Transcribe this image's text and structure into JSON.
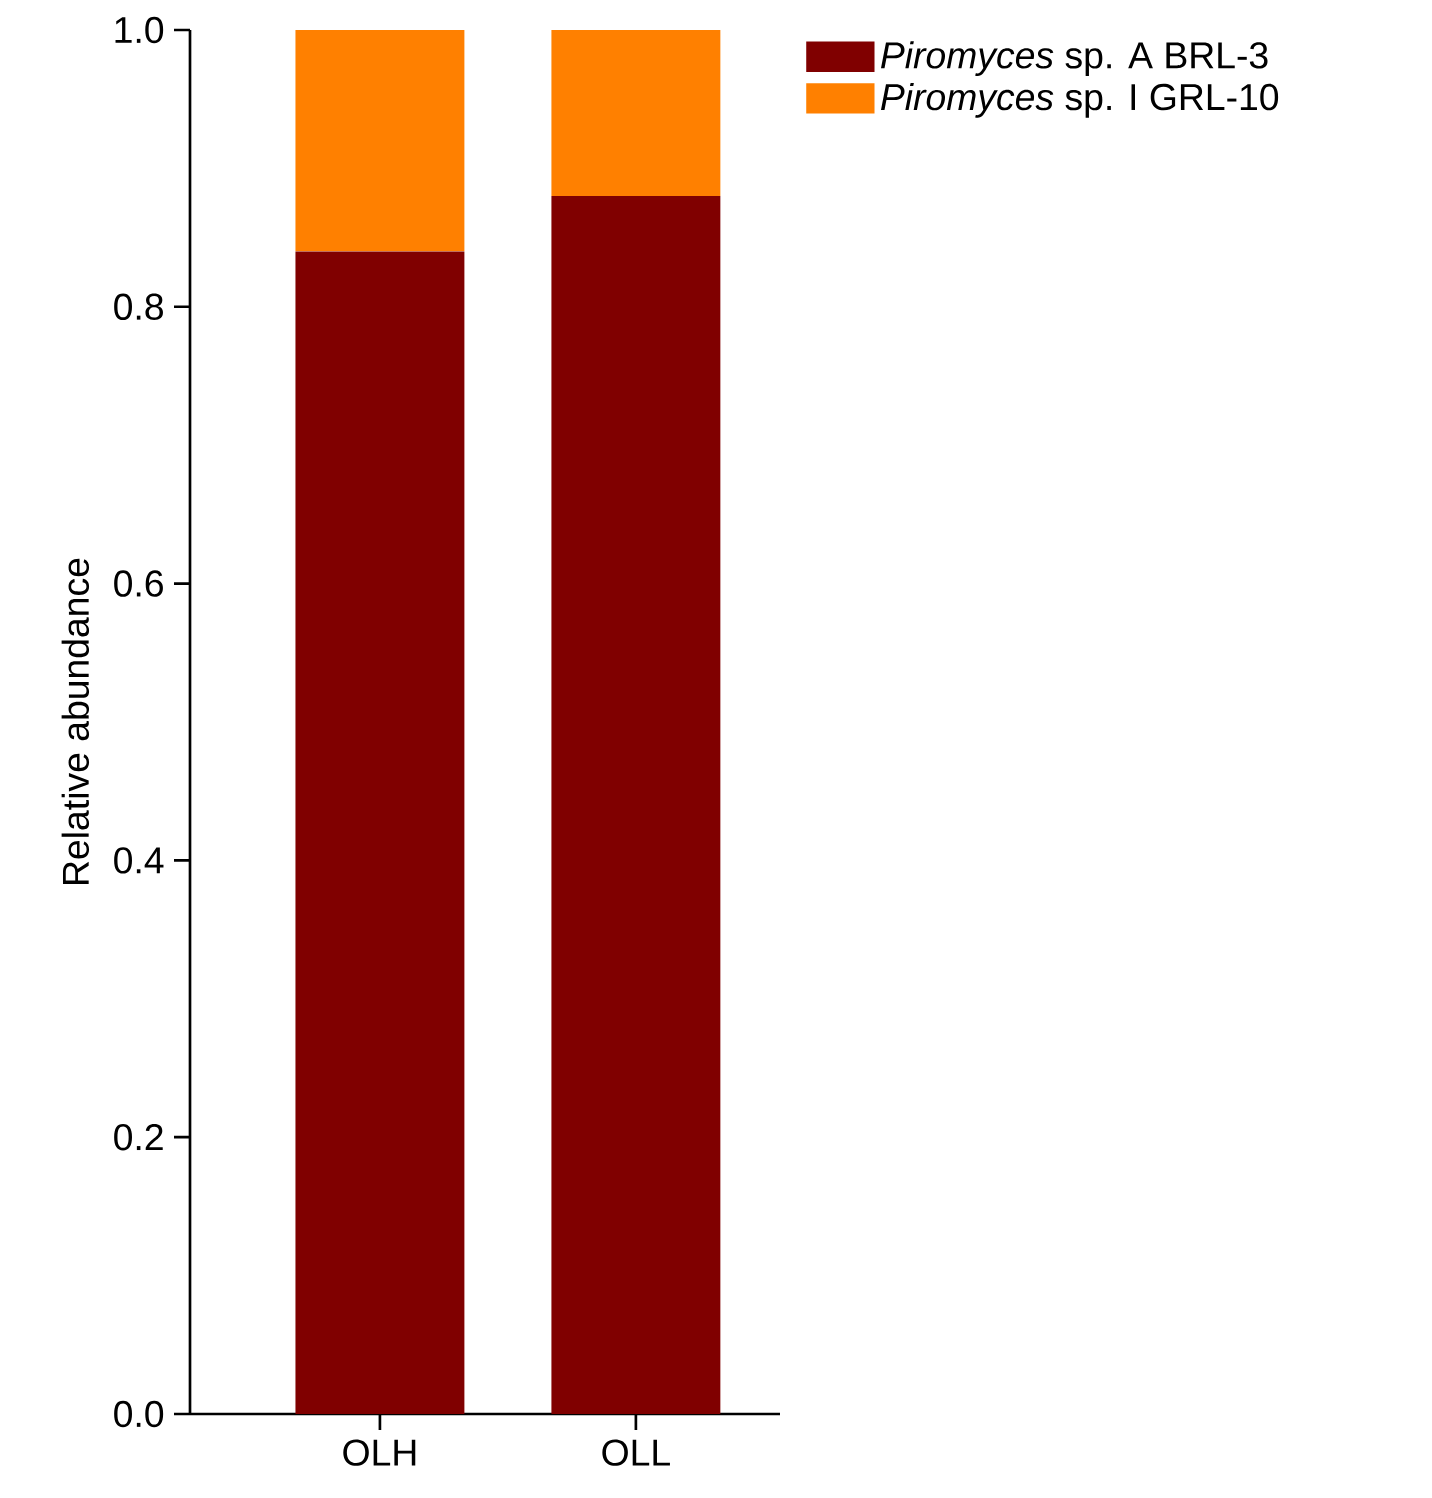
{
  "chart_data": {
    "type": "bar",
    "stacked": true,
    "ylabel": "Relative abundance",
    "categories": [
      "OLH",
      "OLL"
    ],
    "series": [
      {
        "name": "*Piromyces* sp. A BRL-3",
        "color": "#800000",
        "values": [
          0.84,
          0.88
        ]
      },
      {
        "name": "*Piromyces* sp. I GRL-10",
        "color": "#ff8000",
        "values": [
          0.16,
          0.12
        ]
      }
    ],
    "ylim": [
      0,
      1
    ],
    "yticks": [
      {
        "value": 0,
        "label": "0.0"
      },
      0.2,
      0.4,
      0.6,
      0.8,
      {
        "value": 1,
        "label": "1.0"
      }
    ],
    "legend": "top right"
  }
}
